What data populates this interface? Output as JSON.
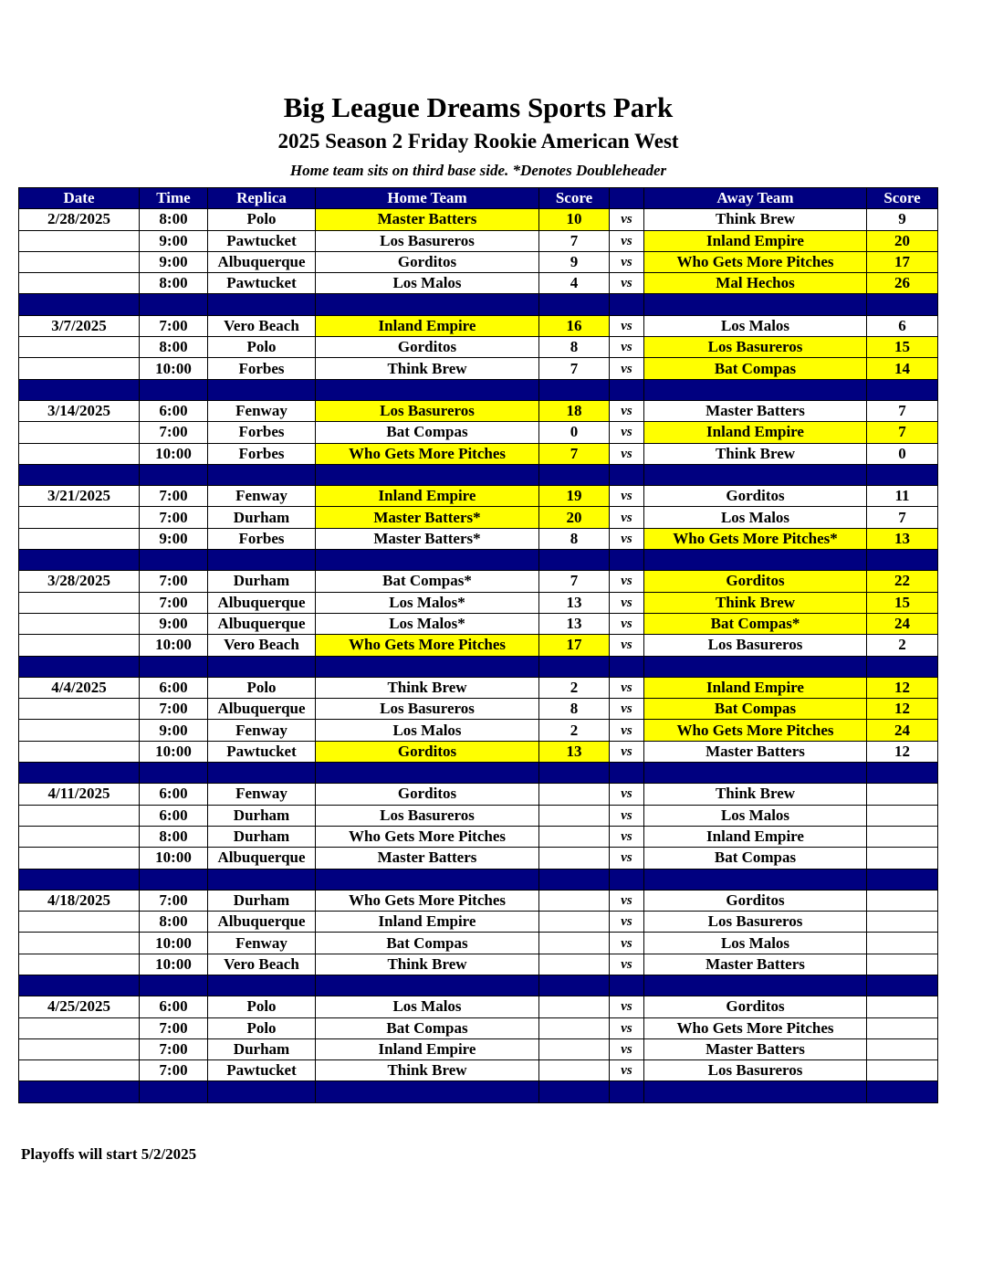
{
  "header": {
    "title": "Big League Dreams Sports Park",
    "subtitle": "2025 Season 2 Friday Rookie American West",
    "note": "Home team sits on third base side.  *Denotes Doubleheader"
  },
  "columns": [
    "Date",
    "Time",
    "Replica",
    "Home Team",
    "Score",
    "",
    "Away Team",
    "Score"
  ],
  "vs_label": "vs",
  "highlight_color": "#ffff00",
  "header_color": "#000080",
  "weeks": [
    {
      "date": "2/28/2025",
      "games": [
        {
          "time": "8:00",
          "replica": "Polo",
          "home": "Master Batters",
          "home_score": "10",
          "away": "Think Brew",
          "away_score": "9",
          "winner": "home"
        },
        {
          "time": "9:00",
          "replica": "Pawtucket",
          "home": "Los Basureros",
          "home_score": "7",
          "away": "Inland Empire",
          "away_score": "20",
          "winner": "away"
        },
        {
          "time": "9:00",
          "replica": "Albuquerque",
          "home": "Gorditos",
          "home_score": "9",
          "away": "Who Gets More Pitches",
          "away_score": "17",
          "winner": "away"
        },
        {
          "time": "8:00",
          "replica": "Pawtucket",
          "home": "Los Malos",
          "home_score": "4",
          "away": "Mal Hechos",
          "away_score": "26",
          "winner": "away"
        }
      ]
    },
    {
      "date": "3/7/2025",
      "games": [
        {
          "time": "7:00",
          "replica": "Vero Beach",
          "home": "Inland Empire",
          "home_score": "16",
          "away": "Los Malos",
          "away_score": "6",
          "winner": "home"
        },
        {
          "time": "8:00",
          "replica": "Polo",
          "home": "Gorditos",
          "home_score": "8",
          "away": "Los Basureros",
          "away_score": "15",
          "winner": "away"
        },
        {
          "time": "10:00",
          "replica": "Forbes",
          "home": "Think Brew",
          "home_score": "7",
          "away": "Bat Compas",
          "away_score": "14",
          "winner": "away"
        }
      ]
    },
    {
      "date": "3/14/2025",
      "games": [
        {
          "time": "6:00",
          "replica": "Fenway",
          "home": "Los Basureros",
          "home_score": "18",
          "away": "Master Batters",
          "away_score": "7",
          "winner": "home"
        },
        {
          "time": "7:00",
          "replica": "Forbes",
          "home": "Bat Compas",
          "home_score": "0",
          "away": "Inland Empire",
          "away_score": "7",
          "winner": "away"
        },
        {
          "time": "10:00",
          "replica": "Forbes",
          "home": "Who Gets More Pitches",
          "home_score": "7",
          "away": "Think Brew",
          "away_score": "0",
          "winner": "home"
        }
      ]
    },
    {
      "date": "3/21/2025",
      "games": [
        {
          "time": "7:00",
          "replica": "Fenway",
          "home": "Inland Empire",
          "home_score": "19",
          "away": "Gorditos",
          "away_score": "11",
          "winner": "home"
        },
        {
          "time": "7:00",
          "replica": "Durham",
          "home": "Master Batters*",
          "home_score": "20",
          "away": "Los Malos",
          "away_score": "7",
          "winner": "home"
        },
        {
          "time": "9:00",
          "replica": "Forbes",
          "home": "Master Batters*",
          "home_score": "8",
          "away": "Who Gets More Pitches*",
          "away_score": "13",
          "winner": "away"
        }
      ]
    },
    {
      "date": "3/28/2025",
      "games": [
        {
          "time": "7:00",
          "replica": "Durham",
          "home": "Bat Compas*",
          "home_score": "7",
          "away": "Gorditos",
          "away_score": "22",
          "winner": "away"
        },
        {
          "time": "7:00",
          "replica": "Albuquerque",
          "home": "Los Malos*",
          "home_score": "13",
          "away": "Think Brew",
          "away_score": "15",
          "winner": "away"
        },
        {
          "time": "9:00",
          "replica": "Albuquerque",
          "home": "Los Malos*",
          "home_score": "13",
          "away": "Bat Compas*",
          "away_score": "24",
          "winner": "away"
        },
        {
          "time": "10:00",
          "replica": "Vero Beach",
          "home": "Who Gets More Pitches",
          "home_score": "17",
          "away": "Los Basureros",
          "away_score": "2",
          "winner": "home"
        }
      ]
    },
    {
      "date": "4/4/2025",
      "games": [
        {
          "time": "6:00",
          "replica": "Polo",
          "home": "Think Brew",
          "home_score": "2",
          "away": "Inland Empire",
          "away_score": "12",
          "winner": "away"
        },
        {
          "time": "7:00",
          "replica": "Albuquerque",
          "home": "Los Basureros",
          "home_score": "8",
          "away": "Bat Compas",
          "away_score": "12",
          "winner": "away"
        },
        {
          "time": "9:00",
          "replica": "Fenway",
          "home": "Los Malos",
          "home_score": "2",
          "away": "Who Gets More Pitches",
          "away_score": "24",
          "winner": "away"
        },
        {
          "time": "10:00",
          "replica": "Pawtucket",
          "home": "Gorditos",
          "home_score": "13",
          "away": "Master Batters",
          "away_score": "12",
          "winner": "home"
        }
      ]
    },
    {
      "date": "4/11/2025",
      "games": [
        {
          "time": "6:00",
          "replica": "Fenway",
          "home": "Gorditos",
          "home_score": "",
          "away": "Think Brew",
          "away_score": "",
          "winner": null
        },
        {
          "time": "6:00",
          "replica": "Durham",
          "home": "Los Basureros",
          "home_score": "",
          "away": "Los Malos",
          "away_score": "",
          "winner": null
        },
        {
          "time": "8:00",
          "replica": "Durham",
          "home": "Who Gets More Pitches",
          "home_score": "",
          "away": "Inland Empire",
          "away_score": "",
          "winner": null
        },
        {
          "time": "10:00",
          "replica": "Albuquerque",
          "home": "Master Batters",
          "home_score": "",
          "away": "Bat Compas",
          "away_score": "",
          "winner": null
        }
      ]
    },
    {
      "date": "4/18/2025",
      "games": [
        {
          "time": "7:00",
          "replica": "Durham",
          "home": "Who Gets More Pitches",
          "home_score": "",
          "away": "Gorditos",
          "away_score": "",
          "winner": null
        },
        {
          "time": "8:00",
          "replica": "Albuquerque",
          "home": "Inland Empire",
          "home_score": "",
          "away": "Los Basureros",
          "away_score": "",
          "winner": null
        },
        {
          "time": "10:00",
          "replica": "Fenway",
          "home": "Bat Compas",
          "home_score": "",
          "away": "Los Malos",
          "away_score": "",
          "winner": null
        },
        {
          "time": "10:00",
          "replica": "Vero Beach",
          "home": "Think Brew",
          "home_score": "",
          "away": "Master Batters",
          "away_score": "",
          "winner": null
        }
      ]
    },
    {
      "date": "4/25/2025",
      "games": [
        {
          "time": "6:00",
          "replica": "Polo",
          "home": "Los Malos",
          "home_score": "",
          "away": "Gorditos",
          "away_score": "",
          "winner": null
        },
        {
          "time": "7:00",
          "replica": "Polo",
          "home": "Bat Compas",
          "home_score": "",
          "away": "Who Gets More Pitches",
          "away_score": "",
          "winner": null
        },
        {
          "time": "7:00",
          "replica": "Durham",
          "home": "Inland Empire",
          "home_score": "",
          "away": "Master Batters",
          "away_score": "",
          "winner": null
        },
        {
          "time": "7:00",
          "replica": "Pawtucket",
          "home": "Think Brew",
          "home_score": "",
          "away": "Los Basureros",
          "away_score": "",
          "winner": null
        }
      ]
    }
  ],
  "footer": "Playoffs will start 5/2/2025"
}
